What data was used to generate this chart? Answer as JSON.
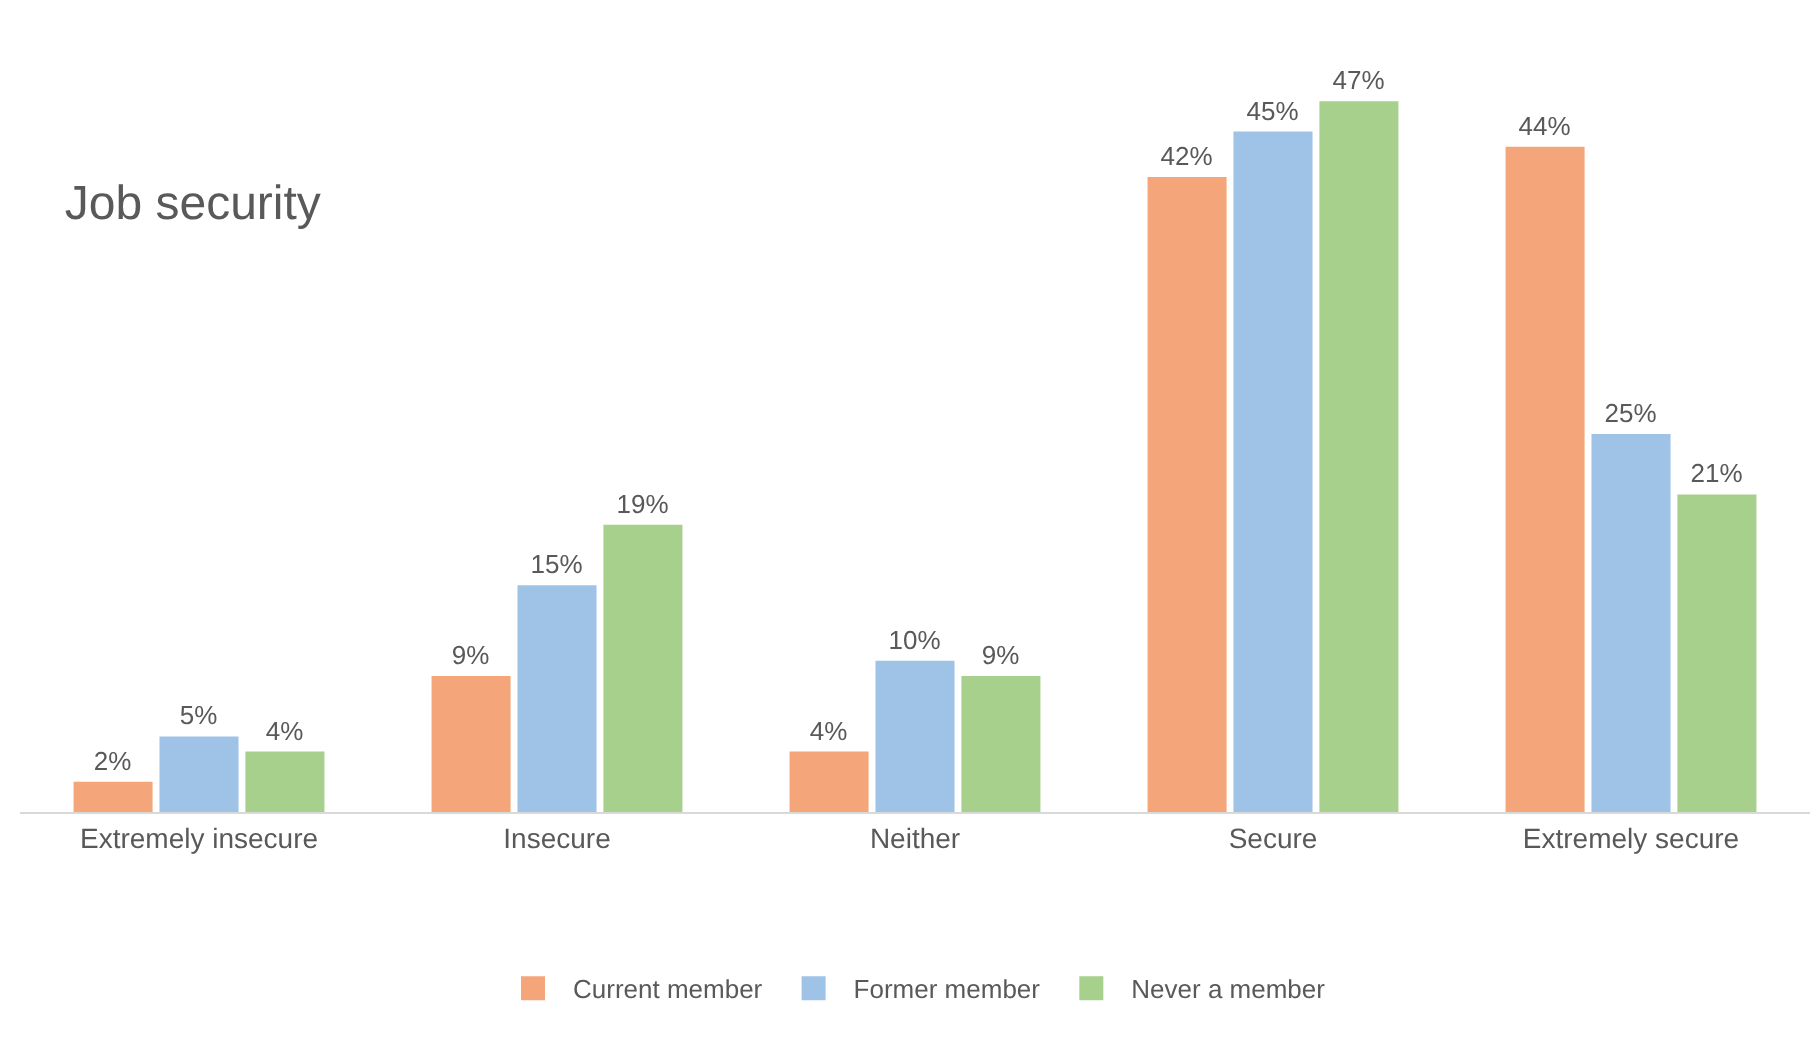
{
  "chart_data": {
    "type": "bar",
    "title": "Job security",
    "categories": [
      "Extremely insecure",
      "Insecure",
      "Neither",
      "Secure",
      "Extremely secure"
    ],
    "series": [
      {
        "name": "Current member",
        "color": "#f4a67a",
        "values": [
          2,
          9,
          4,
          42,
          44
        ],
        "value_labels": [
          "2%",
          "9%",
          "4%",
          "42%",
          "44%"
        ]
      },
      {
        "name": "Former member",
        "color": "#9fc3e7",
        "values": [
          5,
          15,
          10,
          45,
          25
        ],
        "value_labels": [
          "5%",
          "15%",
          "10%",
          "45%",
          "25%"
        ]
      },
      {
        "name": "Never a member",
        "color": "#a8d08d",
        "values": [
          4,
          19,
          9,
          47,
          21
        ],
        "value_labels": [
          "4%",
          "19%",
          "9%",
          "47%",
          "21%"
        ]
      }
    ],
    "legend": "bottom",
    "grid": false
  }
}
